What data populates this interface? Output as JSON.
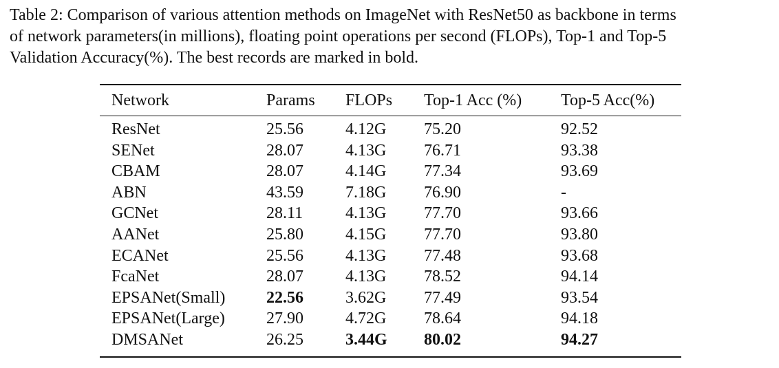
{
  "caption": [
    "Table 2: Comparison of various attention methods on ImageNet with ResNet50 as backbone in terms",
    "of network parameters(in millions), floating point operations per second (FLOPs), Top-1 and Top-5",
    "Validation Accuracy(%). The best records are marked in bold."
  ],
  "table": {
    "header": [
      "Network",
      "Params",
      "FLOPs",
      "Top-1 Acc (%)",
      "Top-5 Acc(%)"
    ],
    "rows": [
      [
        "ResNet",
        "25.56",
        "4.12G",
        "75.20",
        "92.52"
      ],
      [
        "SENet",
        "28.07",
        "4.13G",
        "76.71",
        "93.38"
      ],
      [
        "CBAM",
        "28.07",
        "4.14G",
        "77.34",
        "93.69"
      ],
      [
        "ABN",
        "43.59",
        "7.18G",
        "76.90",
        "-"
      ],
      [
        "GCNet",
        "28.11",
        "4.13G",
        "77.70",
        "93.66"
      ],
      [
        "AANet",
        "25.80",
        "4.15G",
        "77.70",
        "93.80"
      ],
      [
        "ECANet",
        "25.56",
        "4.13G",
        "77.48",
        "93.68"
      ],
      [
        "FcaNet",
        "28.07",
        "4.13G",
        "78.52",
        "94.14"
      ],
      [
        "EPSANet(Small)",
        "22.56",
        "3.62G",
        "77.49",
        "93.54"
      ],
      [
        "EPSANet(Large)",
        "27.90",
        "4.72G",
        "78.64",
        "94.18"
      ],
      [
        "DMSANet",
        "26.25",
        "3.44G",
        "80.02",
        "94.27"
      ]
    ],
    "bold_cells": [
      [
        8,
        1
      ],
      [
        10,
        2
      ],
      [
        10,
        3
      ],
      [
        10,
        4
      ]
    ]
  }
}
